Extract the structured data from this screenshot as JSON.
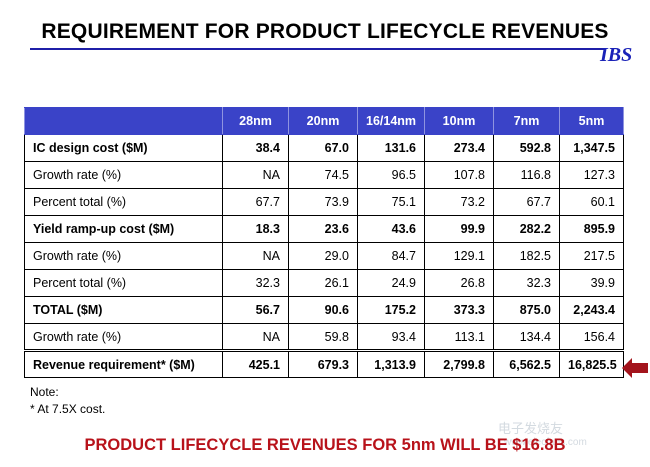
{
  "title": "REQUIREMENT FOR PRODUCT LIFECYCLE REVENUES",
  "logo": "IBS",
  "table": {
    "columns": [
      "28nm",
      "20nm",
      "16/14nm",
      "10nm",
      "7nm",
      "5nm"
    ],
    "rows": [
      {
        "label": "IC design cost ($M)",
        "values": [
          "38.4",
          "67.0",
          "131.6",
          "273.4",
          "592.8",
          "1,347.5"
        ]
      },
      {
        "label": "Growth rate (%)",
        "values": [
          "NA",
          "74.5",
          "96.5",
          "107.8",
          "116.8",
          "127.3"
        ]
      },
      {
        "label": "Percent total (%)",
        "values": [
          "67.7",
          "73.9",
          "75.1",
          "73.2",
          "67.7",
          "60.1"
        ]
      },
      {
        "label": "Yield ramp-up cost ($M)",
        "values": [
          "18.3",
          "23.6",
          "43.6",
          "99.9",
          "282.2",
          "895.9"
        ]
      },
      {
        "label": "Growth rate (%)",
        "values": [
          "NA",
          "29.0",
          "84.7",
          "129.1",
          "182.5",
          "217.5"
        ]
      },
      {
        "label": "Percent total (%)",
        "values": [
          "32.3",
          "26.1",
          "24.9",
          "26.8",
          "32.3",
          "39.9"
        ]
      },
      {
        "label": "TOTAL ($M)",
        "values": [
          "56.7",
          "90.6",
          "175.2",
          "373.3",
          "875.0",
          "2,243.4"
        ]
      },
      {
        "label": "Growth rate (%)",
        "values": [
          "NA",
          "59.8",
          "93.4",
          "113.1",
          "134.4",
          "156.4"
        ]
      },
      {
        "label": "Revenue requirement* ($M)",
        "values": [
          "425.1",
          "679.3",
          "1,313.9",
          "2,799.8",
          "6,562.5",
          "16,825.5"
        ]
      }
    ]
  },
  "notes": {
    "heading": "Note:",
    "footnote": "* At 7.5X cost."
  },
  "footer": "PRODUCT LIFECYCLE REVENUES FOR 5nm WILL BE $16.8B",
  "watermark": {
    "text": "电子发烧友",
    "url": "www.elecfans.com"
  },
  "colors": {
    "header_fill": "#3a43c8",
    "logo": "#1a22b8",
    "footer_text": "#b8121a",
    "arrow": "#a3141c"
  }
}
